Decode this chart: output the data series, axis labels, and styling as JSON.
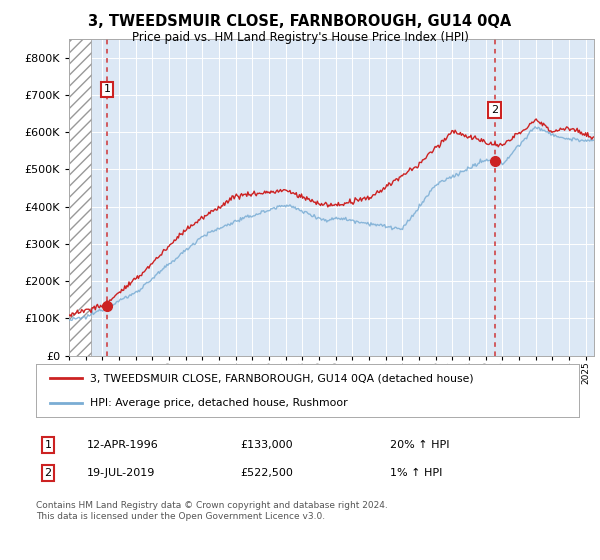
{
  "title": "3, TWEEDSMUIR CLOSE, FARNBOROUGH, GU14 0QA",
  "subtitle": "Price paid vs. HM Land Registry's House Price Index (HPI)",
  "red_label": "3, TWEEDSMUIR CLOSE, FARNBOROUGH, GU14 0QA (detached house)",
  "blue_label": "HPI: Average price, detached house, Rushmoor",
  "ann1_date": "12-APR-1996",
  "ann1_price": "£133,000",
  "ann1_pct": "20% ↑ HPI",
  "ann1_year": 1996.28,
  "ann1_value": 133000,
  "ann2_date": "19-JUL-2019",
  "ann2_price": "£522,500",
  "ann2_pct": "1% ↑ HPI",
  "ann2_year": 2019.54,
  "ann2_value": 522500,
  "footer": "Contains HM Land Registry data © Crown copyright and database right 2024.\nThis data is licensed under the Open Government Licence v3.0.",
  "ylim": [
    0,
    850000
  ],
  "xlim_start": 1994.0,
  "xlim_end": 2025.5,
  "hatch_end": 1995.3,
  "bg_color": "#dce8f5",
  "red_color": "#cc2222",
  "blue_color": "#7aadd4"
}
